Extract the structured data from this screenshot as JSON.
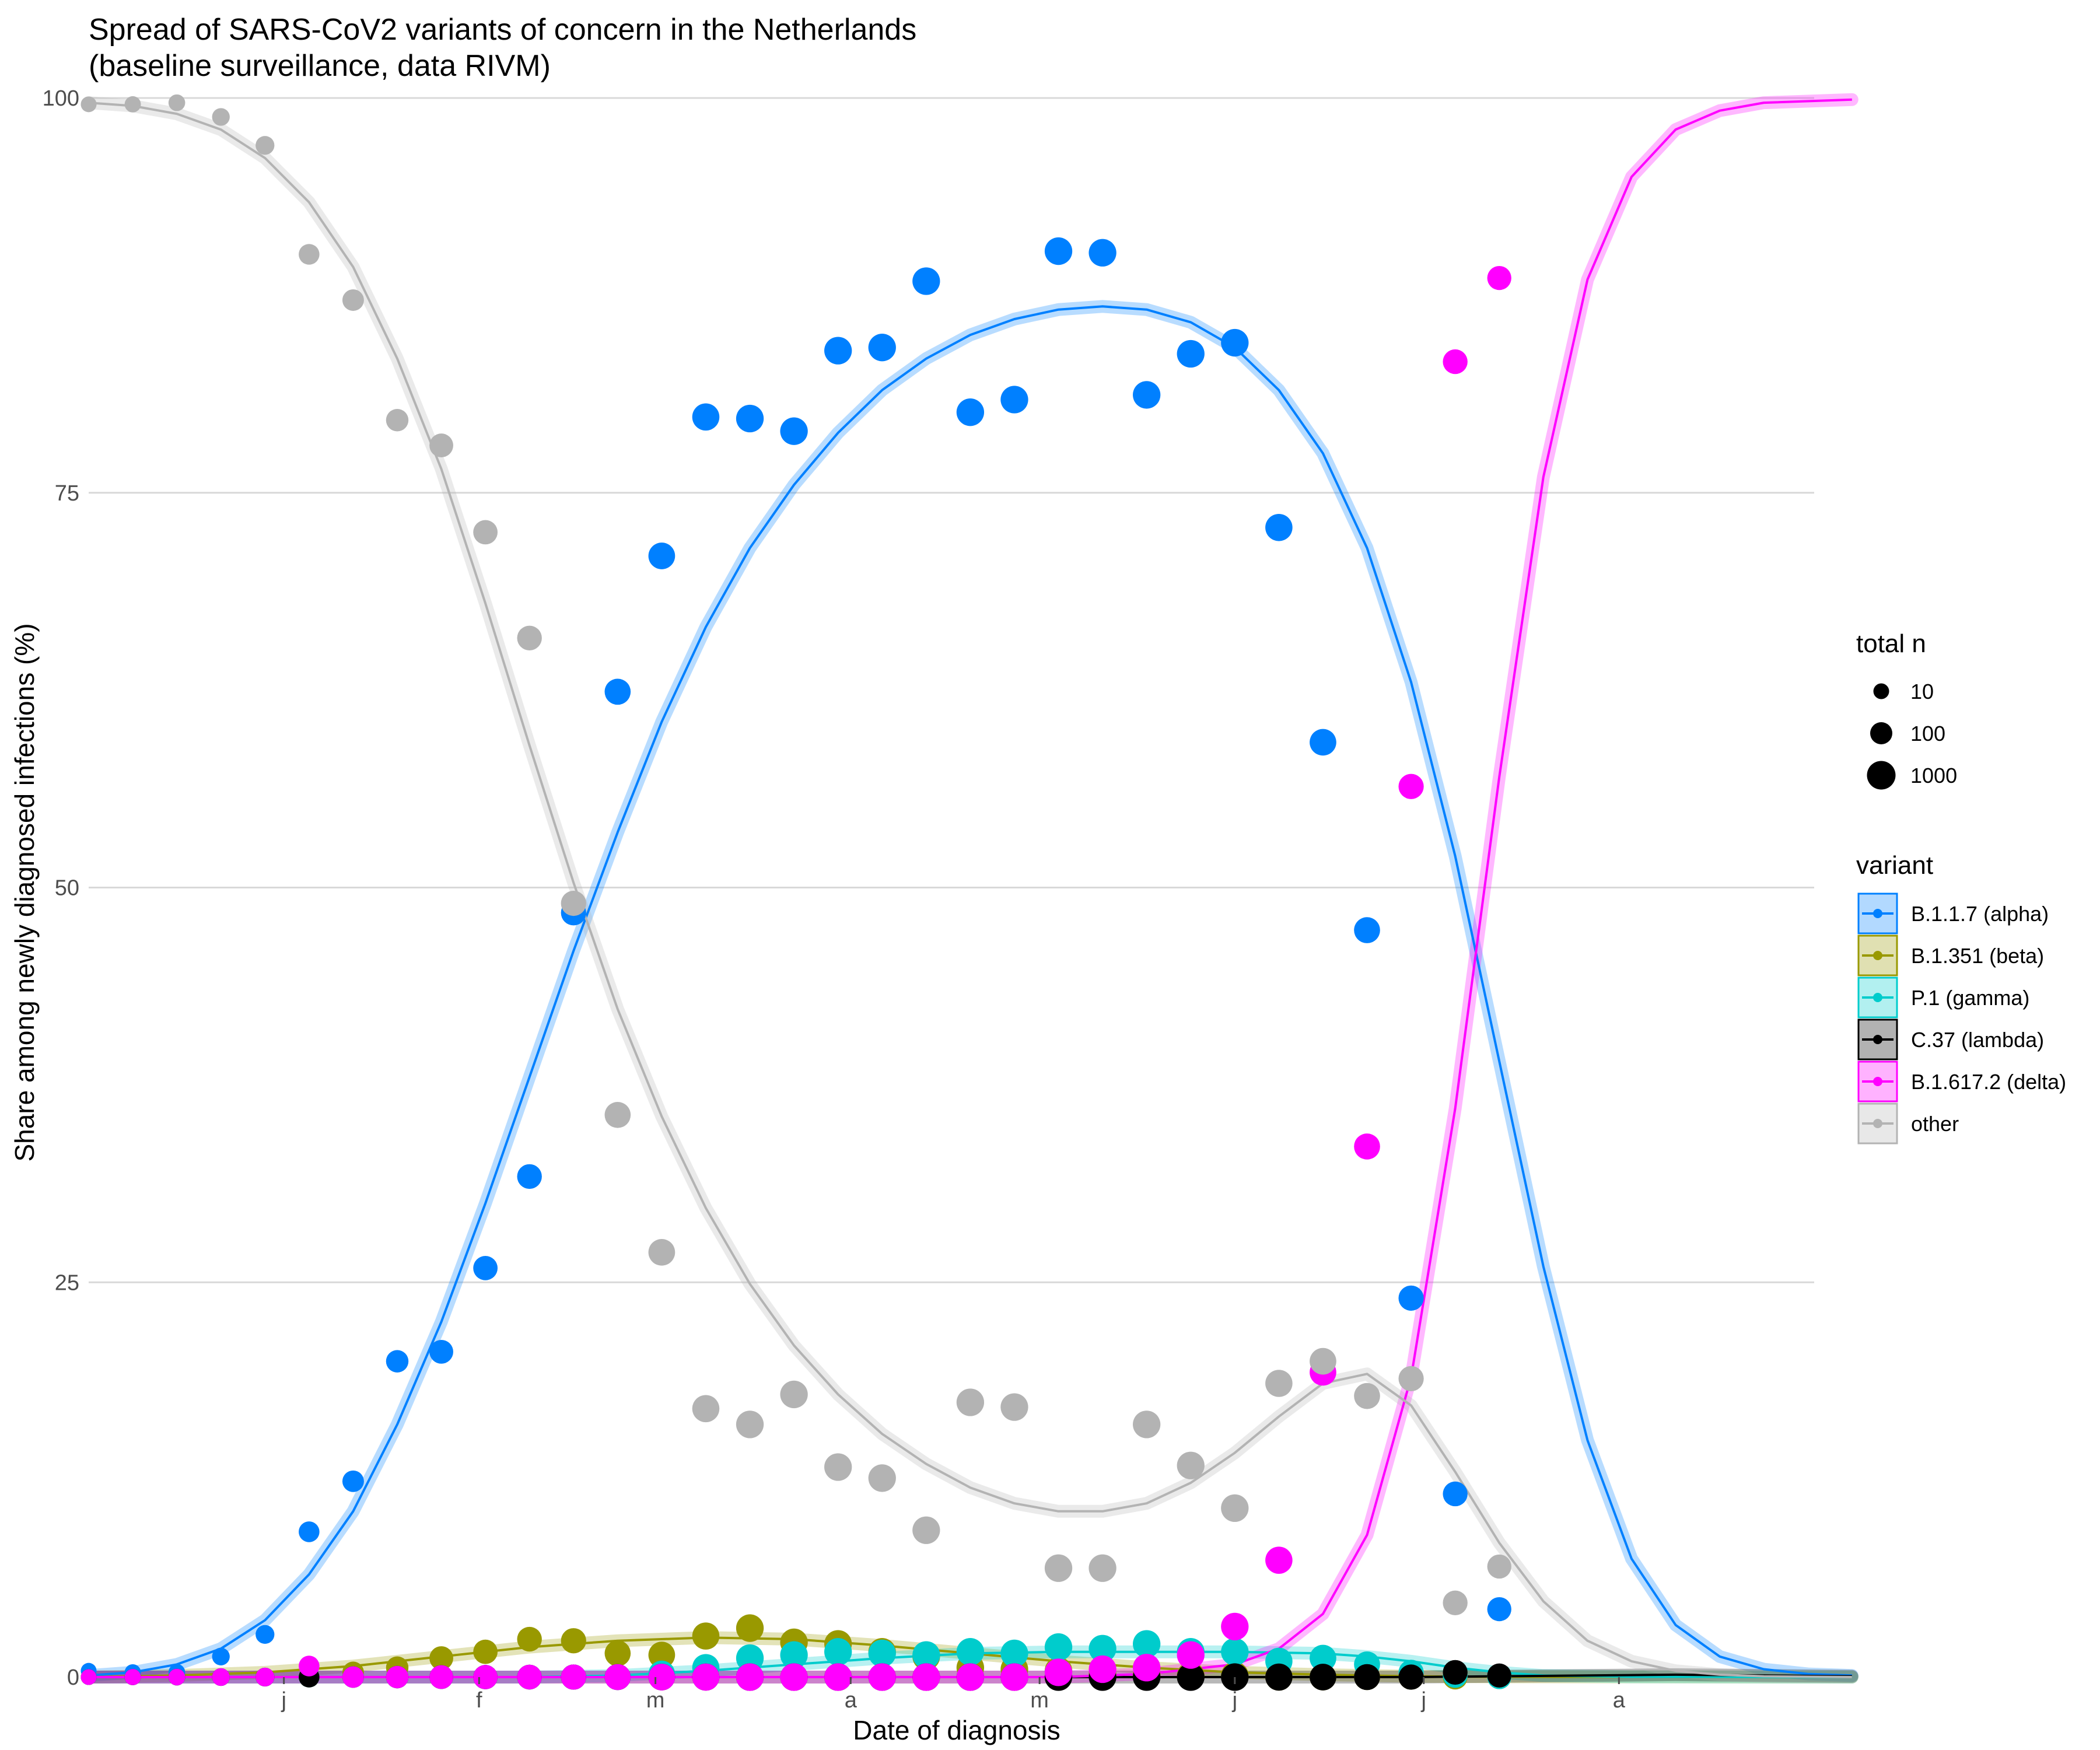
{
  "chart_data": {
    "type": "line",
    "title": [
      "Spread of SARS-CoV2 variants of concern in the Netherlands",
      "(baseline surveillance, data RIVM)"
    ],
    "xlabel": "Date of diagnosis",
    "ylabel": "Share among newly diagnosed infections (%)",
    "xlim": [
      "2020-12-01",
      "2021-09-01"
    ],
    "ylim": [
      0,
      100
    ],
    "x_ticks": [
      {
        "date": "2021-01-01",
        "label": "j"
      },
      {
        "date": "2021-02-01",
        "label": "f"
      },
      {
        "date": "2021-03-01",
        "label": "m"
      },
      {
        "date": "2021-04-01",
        "label": "a"
      },
      {
        "date": "2021-05-01",
        "label": "m"
      },
      {
        "date": "2021-06-01",
        "label": "j"
      },
      {
        "date": "2021-07-01",
        "label": "j"
      },
      {
        "date": "2021-08-01",
        "label": "a"
      }
    ],
    "y_ticks": [
      0,
      25,
      50,
      75,
      100
    ],
    "grid": true,
    "legend_position": "right",
    "size_legend": {
      "title": "total n",
      "entries": [
        "10",
        "100",
        "1000"
      ]
    },
    "color_legend_title": "variant",
    "point_dates": [
      "2020-12-01",
      "2020-12-08",
      "2020-12-15",
      "2020-12-22",
      "2020-12-29",
      "2021-01-05",
      "2021-01-12",
      "2021-01-19",
      "2021-01-26",
      "2021-02-02",
      "2021-02-09",
      "2021-02-16",
      "2021-02-23",
      "2021-03-02",
      "2021-03-09",
      "2021-03-16",
      "2021-03-23",
      "2021-03-30",
      "2021-04-06",
      "2021-04-13",
      "2021-04-20",
      "2021-04-27",
      "2021-05-04",
      "2021-05-11",
      "2021-05-18",
      "2021-05-25",
      "2021-06-01",
      "2021-06-08",
      "2021-06-15",
      "2021-06-22",
      "2021-06-29",
      "2021-07-06",
      "2021-07-13"
    ],
    "total_n": [
      10,
      12,
      14,
      20,
      30,
      60,
      80,
      110,
      180,
      220,
      250,
      300,
      400,
      500,
      600,
      700,
      700,
      700,
      700,
      700,
      700,
      700,
      700,
      700,
      700,
      700,
      700,
      600,
      500,
      400,
      300,
      250,
      200
    ],
    "series": [
      {
        "name": "B.1.1.7 (alpha)",
        "color": "#0080ff",
        "points": [
          0.4,
          0.3,
          0.3,
          1.3,
          2.7,
          9.2,
          12.4,
          20.0,
          20.6,
          25.9,
          31.7,
          48.4,
          62.4,
          71.0,
          79.8,
          79.7,
          78.9,
          84.0,
          84.2,
          88.4,
          80.1,
          80.9,
          90.3,
          90.2,
          81.2,
          83.8,
          84.5,
          72.8,
          59.2,
          47.3,
          24.0,
          11.6,
          4.3
        ],
        "fit": [
          [
            0,
            0.1
          ],
          [
            7,
            0.3
          ],
          [
            14,
            0.8
          ],
          [
            21,
            1.8
          ],
          [
            28,
            3.6
          ],
          [
            35,
            6.5
          ],
          [
            42,
            10.5
          ],
          [
            49,
            16.0
          ],
          [
            56,
            22.5
          ],
          [
            63,
            30.0
          ],
          [
            70,
            38.0
          ],
          [
            77,
            46.0
          ],
          [
            84,
            53.5
          ],
          [
            91,
            60.5
          ],
          [
            98,
            66.5
          ],
          [
            105,
            71.5
          ],
          [
            112,
            75.5
          ],
          [
            119,
            78.8
          ],
          [
            126,
            81.5
          ],
          [
            133,
            83.5
          ],
          [
            140,
            85.0
          ],
          [
            147,
            86.0
          ],
          [
            154,
            86.6
          ],
          [
            161,
            86.8
          ],
          [
            168,
            86.6
          ],
          [
            175,
            85.8
          ],
          [
            182,
            84.2
          ],
          [
            189,
            81.5
          ],
          [
            196,
            77.5
          ],
          [
            203,
            71.5
          ],
          [
            210,
            63.0
          ],
          [
            217,
            52.0
          ],
          [
            224,
            39.0
          ],
          [
            231,
            26.0
          ],
          [
            238,
            15.0
          ],
          [
            245,
            7.5
          ],
          [
            252,
            3.3
          ],
          [
            259,
            1.3
          ],
          [
            266,
            0.5
          ],
          [
            273,
            0.2
          ],
          [
            280,
            0.1
          ]
        ]
      },
      {
        "name": "B.1.351 (beta)",
        "color": "#999900",
        "points": [
          0,
          0,
          0,
          0,
          0,
          0,
          0.3,
          0.6,
          1.2,
          1.6,
          2.4,
          2.3,
          1.5,
          1.4,
          2.6,
          3.1,
          2.2,
          2.1,
          1.6,
          1.3,
          0.6,
          0.5,
          0.4,
          0.2,
          0.1,
          0.1,
          0.1,
          0,
          0,
          0,
          0,
          0,
          0
        ],
        "fit": [
          [
            0,
            0.0
          ],
          [
            14,
            0.1
          ],
          [
            28,
            0.3
          ],
          [
            42,
            0.7
          ],
          [
            56,
            1.3
          ],
          [
            70,
            1.9
          ],
          [
            84,
            2.3
          ],
          [
            98,
            2.5
          ],
          [
            112,
            2.4
          ],
          [
            126,
            2.0
          ],
          [
            140,
            1.5
          ],
          [
            154,
            1.0
          ],
          [
            168,
            0.6
          ],
          [
            182,
            0.3
          ],
          [
            196,
            0.15
          ],
          [
            210,
            0.05
          ],
          [
            224,
            0.02
          ],
          [
            280,
            0.0
          ]
        ]
      },
      {
        "name": "P.1 (gamma)",
        "color": "#00cccc",
        "points": [
          0,
          0,
          0,
          0,
          0,
          0,
          0,
          0,
          0,
          0,
          0,
          0,
          0,
          0.2,
          0.6,
          1.2,
          1.4,
          1.6,
          1.5,
          1.4,
          1.6,
          1.5,
          1.9,
          1.8,
          2.1,
          1.6,
          1.6,
          1.0,
          1.2,
          0.8,
          0.3,
          0.1,
          0
        ],
        "fit": [
          [
            0,
            0.0
          ],
          [
            70,
            0.0
          ],
          [
            84,
            0.1
          ],
          [
            98,
            0.4
          ],
          [
            112,
            0.8
          ],
          [
            126,
            1.2
          ],
          [
            140,
            1.5
          ],
          [
            154,
            1.6
          ],
          [
            168,
            1.6
          ],
          [
            182,
            1.6
          ],
          [
            196,
            1.5
          ],
          [
            203,
            1.3
          ],
          [
            210,
            1.0
          ],
          [
            217,
            0.6
          ],
          [
            224,
            0.3
          ],
          [
            231,
            0.1
          ],
          [
            245,
            0.02
          ],
          [
            280,
            0.0
          ]
        ]
      },
      {
        "name": "C.37 (lambda)",
        "color": "#000000",
        "points": [
          0,
          0,
          0,
          0,
          0,
          0,
          0,
          0,
          0,
          0,
          0,
          0,
          0,
          0,
          0,
          0,
          0,
          0,
          0,
          0,
          0,
          0,
          0,
          0,
          0,
          0,
          0,
          0,
          0,
          0,
          0,
          0.3,
          0.1
        ],
        "fit": [
          [
            0,
            0.0
          ],
          [
            210,
            0.0
          ],
          [
            224,
            0.05
          ],
          [
            238,
            0.1
          ],
          [
            252,
            0.15
          ],
          [
            266,
            0.1
          ],
          [
            280,
            0.05
          ]
        ]
      },
      {
        "name": "B.1.617.2 (delta)",
        "color": "#ff00ff",
        "points": [
          0,
          0,
          0,
          0,
          0,
          0.7,
          0,
          0,
          0,
          0,
          0,
          0,
          0,
          0,
          0,
          0,
          0,
          0,
          0,
          0,
          0,
          0,
          0.3,
          0.5,
          0.6,
          1.4,
          3.2,
          7.4,
          19.3,
          33.6,
          56.4,
          83.3,
          88.6
        ],
        "fit": [
          [
            0,
            0.0
          ],
          [
            154,
            0.0
          ],
          [
            168,
            0.2
          ],
          [
            182,
            0.8
          ],
          [
            189,
            1.8
          ],
          [
            196,
            4.0
          ],
          [
            203,
            9.0
          ],
          [
            210,
            19.0
          ],
          [
            217,
            36.0
          ],
          [
            224,
            57.0
          ],
          [
            231,
            76.0
          ],
          [
            238,
            88.5
          ],
          [
            245,
            95.0
          ],
          [
            252,
            98.0
          ],
          [
            259,
            99.2
          ],
          [
            266,
            99.7
          ],
          [
            280,
            99.9
          ]
        ]
      },
      {
        "name": "other",
        "color": "#b3b3b3",
        "points": [
          99.6,
          99.6,
          99.7,
          98.8,
          97.0,
          90.1,
          87.2,
          79.6,
          78.0,
          72.5,
          65.8,
          49.0,
          35.6,
          26.9,
          17.0,
          16.0,
          17.9,
          13.3,
          12.6,
          9.3,
          17.4,
          17.1,
          6.9,
          6.9,
          16.0,
          13.4,
          10.7,
          18.6,
          20.0,
          17.8,
          18.9,
          4.7,
          7.0
        ],
        "fit": [
          [
            0,
            99.7
          ],
          [
            7,
            99.5
          ],
          [
            14,
            99.0
          ],
          [
            21,
            98.0
          ],
          [
            28,
            96.2
          ],
          [
            35,
            93.4
          ],
          [
            42,
            89.3
          ],
          [
            49,
            83.5
          ],
          [
            56,
            76.5
          ],
          [
            63,
            68.0
          ],
          [
            70,
            59.0
          ],
          [
            77,
            50.3
          ],
          [
            84,
            42.3
          ],
          [
            91,
            35.5
          ],
          [
            98,
            29.7
          ],
          [
            105,
            24.9
          ],
          [
            112,
            21.0
          ],
          [
            119,
            17.9
          ],
          [
            126,
            15.4
          ],
          [
            133,
            13.5
          ],
          [
            140,
            12.0
          ],
          [
            147,
            11.0
          ],
          [
            154,
            10.5
          ],
          [
            161,
            10.5
          ],
          [
            168,
            11.0
          ],
          [
            175,
            12.3
          ],
          [
            182,
            14.2
          ],
          [
            189,
            16.5
          ],
          [
            196,
            18.6
          ],
          [
            203,
            19.2
          ],
          [
            210,
            17.2
          ],
          [
            217,
            13.0
          ],
          [
            224,
            8.5
          ],
          [
            231,
            4.8
          ],
          [
            238,
            2.3
          ],
          [
            245,
            1.0
          ],
          [
            252,
            0.4
          ],
          [
            259,
            0.15
          ],
          [
            266,
            0.05
          ],
          [
            280,
            0.0
          ]
        ]
      }
    ]
  }
}
